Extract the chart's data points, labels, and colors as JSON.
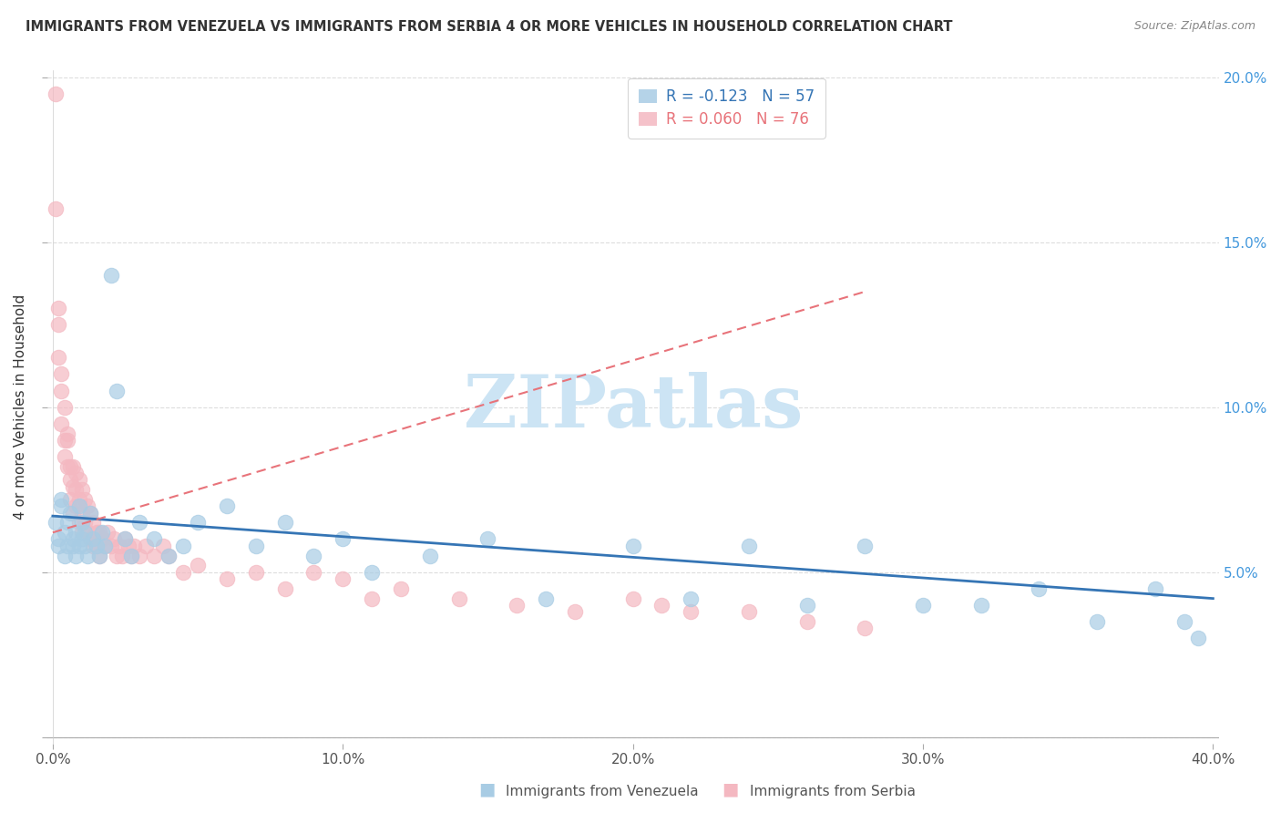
{
  "title": "IMMIGRANTS FROM VENEZUELA VS IMMIGRANTS FROM SERBIA 4 OR MORE VEHICLES IN HOUSEHOLD CORRELATION CHART",
  "source": "Source: ZipAtlas.com",
  "ylabel": "4 or more Vehicles in Household",
  "xlabel": "",
  "xlim": [
    -0.002,
    0.402
  ],
  "ylim": [
    -0.002,
    0.202
  ],
  "xticks": [
    0.0,
    0.1,
    0.2,
    0.3,
    0.4
  ],
  "yticks": [
    0.0,
    0.05,
    0.1,
    0.15,
    0.2
  ],
  "xticklabels": [
    "0.0%",
    "10.0%",
    "20.0%",
    "30.0%",
    "40.0%"
  ],
  "left_yticklabels": [
    "",
    "",
    "",
    "",
    ""
  ],
  "right_yticklabels": [
    "",
    "5.0%",
    "10.0%",
    "15.0%",
    "20.0%"
  ],
  "venezuela_color": "#a8cce4",
  "serbia_color": "#f4b8c1",
  "trend_venezuela_color": "#3575b5",
  "trend_serbia_color": "#e8737a",
  "R_venezuela": -0.123,
  "N_venezuela": 57,
  "R_serbia": 0.06,
  "N_serbia": 76,
  "watermark": "ZIPatlas",
  "watermark_color": "#cce4f4",
  "legend_label_venezuela": "Immigrants from Venezuela",
  "legend_label_serbia": "Immigrants from Serbia",
  "venezuela_trend_x": [
    0.0,
    0.4
  ],
  "venezuela_trend_y": [
    0.067,
    0.042
  ],
  "serbia_trend_x": [
    0.0,
    0.28
  ],
  "serbia_trend_y": [
    0.062,
    0.135
  ],
  "venezuela_x": [
    0.001,
    0.002,
    0.002,
    0.003,
    0.003,
    0.004,
    0.004,
    0.005,
    0.005,
    0.006,
    0.007,
    0.007,
    0.008,
    0.008,
    0.009,
    0.009,
    0.01,
    0.01,
    0.011,
    0.011,
    0.012,
    0.013,
    0.014,
    0.015,
    0.016,
    0.017,
    0.018,
    0.02,
    0.022,
    0.025,
    0.027,
    0.03,
    0.035,
    0.04,
    0.045,
    0.05,
    0.06,
    0.07,
    0.08,
    0.09,
    0.1,
    0.11,
    0.13,
    0.15,
    0.17,
    0.2,
    0.22,
    0.24,
    0.26,
    0.28,
    0.3,
    0.32,
    0.34,
    0.36,
    0.38,
    0.39,
    0.395
  ],
  "venezuela_y": [
    0.065,
    0.06,
    0.058,
    0.07,
    0.072,
    0.055,
    0.062,
    0.058,
    0.065,
    0.068,
    0.06,
    0.058,
    0.062,
    0.055,
    0.07,
    0.058,
    0.065,
    0.06,
    0.058,
    0.062,
    0.055,
    0.068,
    0.06,
    0.058,
    0.055,
    0.062,
    0.058,
    0.14,
    0.105,
    0.06,
    0.055,
    0.065,
    0.06,
    0.055,
    0.058,
    0.065,
    0.07,
    0.058,
    0.065,
    0.055,
    0.06,
    0.05,
    0.055,
    0.06,
    0.042,
    0.058,
    0.042,
    0.058,
    0.04,
    0.058,
    0.04,
    0.04,
    0.045,
    0.035,
    0.045,
    0.035,
    0.03
  ],
  "serbia_x": [
    0.001,
    0.001,
    0.002,
    0.002,
    0.002,
    0.003,
    0.003,
    0.003,
    0.004,
    0.004,
    0.004,
    0.005,
    0.005,
    0.005,
    0.006,
    0.006,
    0.006,
    0.007,
    0.007,
    0.007,
    0.008,
    0.008,
    0.008,
    0.009,
    0.009,
    0.009,
    0.01,
    0.01,
    0.01,
    0.011,
    0.011,
    0.012,
    0.012,
    0.013,
    0.013,
    0.014,
    0.014,
    0.015,
    0.015,
    0.016,
    0.016,
    0.017,
    0.018,
    0.019,
    0.02,
    0.021,
    0.022,
    0.023,
    0.024,
    0.025,
    0.026,
    0.027,
    0.028,
    0.03,
    0.032,
    0.035,
    0.038,
    0.04,
    0.045,
    0.05,
    0.06,
    0.07,
    0.08,
    0.09,
    0.1,
    0.11,
    0.12,
    0.14,
    0.16,
    0.18,
    0.2,
    0.21,
    0.22,
    0.24,
    0.26,
    0.28
  ],
  "serbia_y": [
    0.195,
    0.16,
    0.13,
    0.115,
    0.125,
    0.11,
    0.105,
    0.095,
    0.1,
    0.09,
    0.085,
    0.09,
    0.082,
    0.092,
    0.082,
    0.078,
    0.072,
    0.082,
    0.076,
    0.068,
    0.08,
    0.075,
    0.07,
    0.078,
    0.072,
    0.065,
    0.075,
    0.068,
    0.062,
    0.072,
    0.065,
    0.07,
    0.062,
    0.068,
    0.06,
    0.065,
    0.058,
    0.062,
    0.058,
    0.062,
    0.055,
    0.06,
    0.058,
    0.062,
    0.058,
    0.06,
    0.055,
    0.058,
    0.055,
    0.06,
    0.058,
    0.055,
    0.058,
    0.055,
    0.058,
    0.055,
    0.058,
    0.055,
    0.05,
    0.052,
    0.048,
    0.05,
    0.045,
    0.05,
    0.048,
    0.042,
    0.045,
    0.042,
    0.04,
    0.038,
    0.042,
    0.04,
    0.038,
    0.038,
    0.035,
    0.033
  ]
}
